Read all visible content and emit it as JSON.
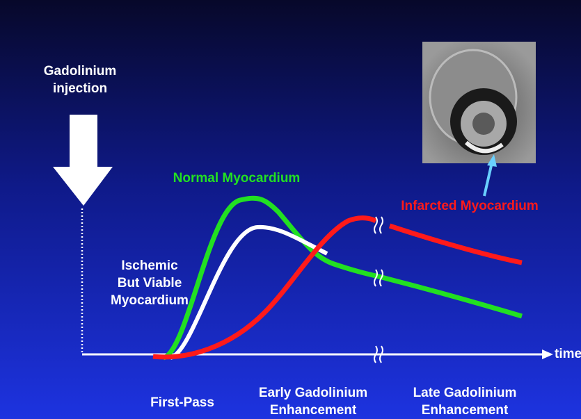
{
  "injection": {
    "lines": [
      "Gadolinium",
      "injection"
    ]
  },
  "curves": {
    "normal": "Normal Myocardium",
    "infarcted": "Infarcted Myocardium",
    "ischemic": [
      "Ischemic",
      "But Viable",
      "Myocardium"
    ]
  },
  "axis": {
    "label": "time"
  },
  "phases": [
    {
      "lines": [
        "First-Pass"
      ]
    },
    {
      "lines": [
        "Early Gadolinium",
        "Enhancement"
      ]
    },
    {
      "lines": [
        "Late Gadolinium",
        "Enhancement"
      ]
    }
  ]
}
